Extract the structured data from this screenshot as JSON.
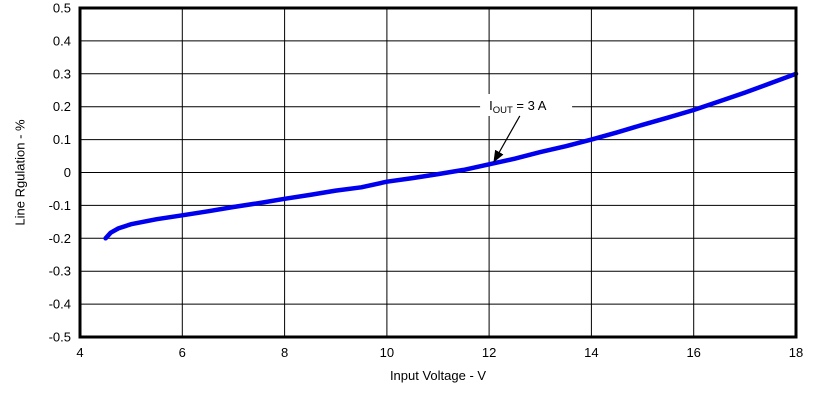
{
  "chart_data": {
    "type": "line",
    "title": "",
    "xlabel": "Input Voltage - V",
    "ylabel": "Line Rgulation - %",
    "xlim": [
      4,
      18
    ],
    "ylim": [
      -0.5,
      0.5
    ],
    "grid": true,
    "axis_color": "#000000",
    "grid_color": "#000000",
    "x_ticks": [
      4,
      6,
      8,
      10,
      12,
      14,
      16,
      18
    ],
    "x_tick_labels": [
      "4",
      "6",
      "8",
      "10",
      "12",
      "14",
      "16",
      "18"
    ],
    "y_ticks": [
      0.5,
      0.4,
      0.3,
      0.2,
      0.1,
      0,
      -0.1,
      -0.2,
      -0.3,
      -0.4,
      -0.5
    ],
    "y_tick_labels": [
      "0.5",
      "0.4",
      "0.3",
      "0.2",
      "0.1",
      "0",
      "-0.1",
      "-0.2",
      "-0.3",
      "-0.4",
      "-0.5"
    ],
    "series": [
      {
        "name": "IOUT = 3 A",
        "color": "#0000EE",
        "x": [
          4.5,
          4.6,
          4.75,
          5.0,
          5.5,
          6.0,
          6.5,
          7.0,
          7.5,
          8.0,
          8.5,
          9.0,
          9.5,
          10.0,
          10.5,
          11.0,
          11.5,
          12.0,
          12.5,
          13.0,
          13.5,
          14.0,
          14.5,
          15.0,
          15.5,
          16.0,
          16.5,
          17.0,
          17.5,
          18.0
        ],
        "y": [
          -0.2,
          -0.183,
          -0.17,
          -0.157,
          -0.142,
          -0.13,
          -0.118,
          -0.105,
          -0.093,
          -0.08,
          -0.068,
          -0.055,
          -0.045,
          -0.028,
          -0.017,
          -0.005,
          0.008,
          0.025,
          0.042,
          0.062,
          0.08,
          0.1,
          0.122,
          0.145,
          0.167,
          0.19,
          0.216,
          0.243,
          0.271,
          0.3
        ]
      }
    ],
    "annotation": {
      "label_base": "I",
      "label_sub": "OUT",
      "label_rest": " = 3 A",
      "text_x": 12.0,
      "text_y": 0.19,
      "arrow_from_x": 12.6,
      "arrow_from_y": 0.172,
      "arrow_to_x": 12.1,
      "arrow_to_y": 0.035
    }
  }
}
